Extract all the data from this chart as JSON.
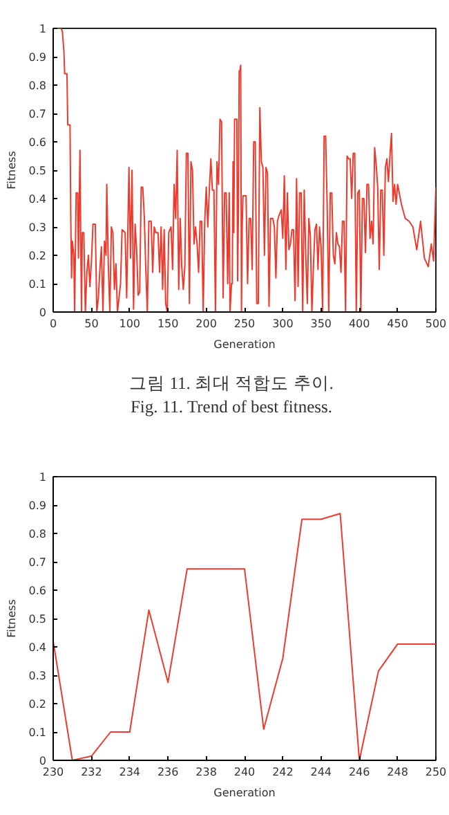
{
  "chart_data": [
    {
      "type": "line",
      "xlabel": "Generation",
      "ylabel": "Fitness",
      "xlim": [
        0,
        500
      ],
      "ylim": [
        0,
        1
      ],
      "xticks": [
        0,
        50,
        100,
        150,
        200,
        250,
        300,
        350,
        400,
        450,
        500
      ],
      "yticks": [
        0,
        0.1,
        0.2,
        0.3,
        0.4,
        0.5,
        0.6,
        0.7,
        0.8,
        0.9,
        1
      ],
      "grid": false,
      "annotations": [
        "그림 11. 최대 적합도 추이.",
        "Fig. 11. Trend of best fitness."
      ],
      "series": [
        {
          "color": "#ee3a2c",
          "x": [
            0,
            10,
            12,
            14,
            15,
            18,
            19,
            22,
            23,
            24,
            25,
            27,
            28,
            30,
            32,
            33,
            35,
            36,
            37,
            38,
            40,
            42,
            44,
            46,
            48,
            50,
            52,
            55,
            57,
            59,
            61,
            63,
            65,
            67,
            69,
            70,
            72,
            74,
            76,
            78,
            80,
            82,
            84,
            88,
            90,
            94,
            96,
            99,
            101,
            103,
            105,
            107,
            109,
            111,
            113,
            115,
            117,
            119,
            121,
            123,
            125,
            128,
            130,
            132,
            134,
            137,
            139,
            141,
            143,
            145,
            147,
            149,
            151,
            154,
            156,
            158,
            160,
            162,
            164,
            166,
            168,
            170,
            172,
            174,
            176,
            178,
            180,
            182,
            184,
            186,
            188,
            190,
            192,
            194,
            196,
            198,
            200,
            202,
            204,
            206,
            208,
            210,
            212,
            214,
            216,
            218,
            220,
            222,
            224,
            226,
            228,
            230,
            231,
            233,
            234,
            235,
            236,
            237,
            240,
            241,
            242,
            243,
            244,
            245,
            246,
            247,
            248,
            252,
            254,
            256,
            258,
            260,
            262,
            264,
            266,
            268,
            270,
            272,
            274,
            276,
            278,
            280,
            282,
            284,
            287,
            289,
            291,
            293,
            295,
            298,
            300,
            302,
            304,
            306,
            308,
            310,
            312,
            314,
            316,
            318,
            320,
            322,
            324,
            326,
            328,
            330,
            332,
            334,
            336,
            338,
            340,
            342,
            344,
            346,
            348,
            350,
            352,
            354,
            356,
            358,
            360,
            362,
            364,
            366,
            368,
            370,
            372,
            374,
            376,
            378,
            380,
            382,
            384,
            386,
            388,
            390,
            392,
            394,
            396,
            398,
            400,
            402,
            404,
            406,
            408,
            410,
            412,
            414,
            416,
            418,
            420,
            422,
            424,
            426,
            428,
            430,
            432,
            434,
            436,
            438,
            440,
            442,
            444,
            446,
            448,
            450,
            455,
            460,
            465,
            470,
            475,
            480,
            485,
            490,
            494,
            497,
            500
          ],
          "values": [
            1,
            1,
            0.99,
            0.92,
            0.84,
            0.84,
            0.66,
            0.66,
            0.33,
            0.12,
            0.25,
            0.2,
            0,
            0.42,
            0.42,
            0.19,
            0.57,
            0.25,
            0,
            0.28,
            0.28,
            0,
            0.14,
            0.2,
            0.09,
            0.18,
            0.31,
            0.31,
            0,
            0.05,
            0.15,
            0.23,
            0,
            0.25,
            0.2,
            0.45,
            0.17,
            0,
            0.3,
            0.28,
            0.08,
            0.17,
            0,
            0.1,
            0.29,
            0.28,
            0.05,
            0.51,
            0.19,
            0.5,
            0.01,
            0.31,
            0.22,
            0.06,
            0.07,
            0.44,
            0.44,
            0.34,
            0.15,
            0,
            0.32,
            0.32,
            0.14,
            0.3,
            0.28,
            0.28,
            0.14,
            0.3,
            0.08,
            0.29,
            0.03,
            0,
            0.28,
            0.3,
            0.15,
            0.45,
            0.33,
            0.57,
            0.08,
            0.33,
            0.16,
            0.08,
            0.16,
            0.56,
            0.56,
            0.03,
            0.53,
            0.5,
            0.24,
            0.3,
            0.24,
            0.14,
            0.32,
            0.32,
            0,
            0.32,
            0.44,
            0.3,
            0.43,
            0.54,
            0.43,
            0.43,
            0,
            0.53,
            0.45,
            0.68,
            0.67,
            0.05,
            0.42,
            0.42,
            0.1,
            0.42,
            0,
            0.1,
            0.1,
            0.53,
            0.28,
            0.68,
            0.68,
            0.11,
            0.36,
            0.85,
            0.85,
            0.87,
            0,
            0.31,
            0.41,
            0.41,
            0.1,
            0.33,
            0.33,
            0.15,
            0.6,
            0.6,
            0.03,
            0.03,
            0.72,
            0.53,
            0.51,
            0.2,
            0.51,
            0.49,
            0.02,
            0.33,
            0.33,
            0.3,
            0.12,
            0.32,
            0.34,
            0.36,
            0.26,
            0.48,
            0.15,
            0.42,
            0.22,
            0.24,
            0.29,
            0.29,
            0.04,
            0.47,
            0.09,
            0.42,
            0.42,
            0,
            0.43,
            0.2,
            0.03,
            0.33,
            0.27,
            0,
            0.16,
            0.29,
            0.31,
            0.15,
            0.3,
            0.23,
            0,
            0.62,
            0.62,
            0.37,
            0,
            0.42,
            0.42,
            0.2,
            0.17,
            0.28,
            0.24,
            0.23,
            0.14,
            0.32,
            0.32,
            0,
            0.55,
            0.54,
            0.54,
            0.4,
            0.56,
            0.56,
            0,
            0.42,
            0.43,
            0,
            0.4,
            0.4,
            0.21,
            0.45,
            0.45,
            0.26,
            0.32,
            0.24,
            0.58,
            0.52,
            0.44,
            0.15,
            0.43,
            0.43,
            0.2,
            0.51,
            0.54,
            0.46,
            0.55,
            0.63,
            0.39,
            0.45,
            0.38,
            0.45,
            0.38,
            0.33,
            0.32,
            0.3,
            0.22,
            0.32,
            0.19,
            0.16,
            0.24,
            0.18,
            0.44
          ]
        }
      ]
    },
    {
      "type": "line",
      "xlabel": "Generation",
      "ylabel": "Fitness",
      "xlim": [
        230,
        250
      ],
      "ylim": [
        0,
        1
      ],
      "xticks": [
        230,
        232,
        234,
        236,
        238,
        240,
        242,
        244,
        246,
        248,
        250
      ],
      "yticks": [
        0,
        0.1,
        0.2,
        0.3,
        0.4,
        0.5,
        0.6,
        0.7,
        0.8,
        0.9,
        1
      ],
      "grid": false,
      "series": [
        {
          "color": "#ee3a2c",
          "x": [
            230,
            231,
            232,
            233,
            234,
            235,
            236,
            237,
            238,
            239,
            240,
            241,
            242,
            243,
            244,
            245,
            246,
            247,
            248,
            249,
            250
          ],
          "values": [
            0.42,
            0,
            0.015,
            0.1,
            0.1,
            0.53,
            0.275,
            0.675,
            0.675,
            0.675,
            0.675,
            0.11,
            0.36,
            0.85,
            0.85,
            0.87,
            0,
            0.315,
            0.41,
            0.41,
            0.41
          ]
        }
      ]
    }
  ]
}
